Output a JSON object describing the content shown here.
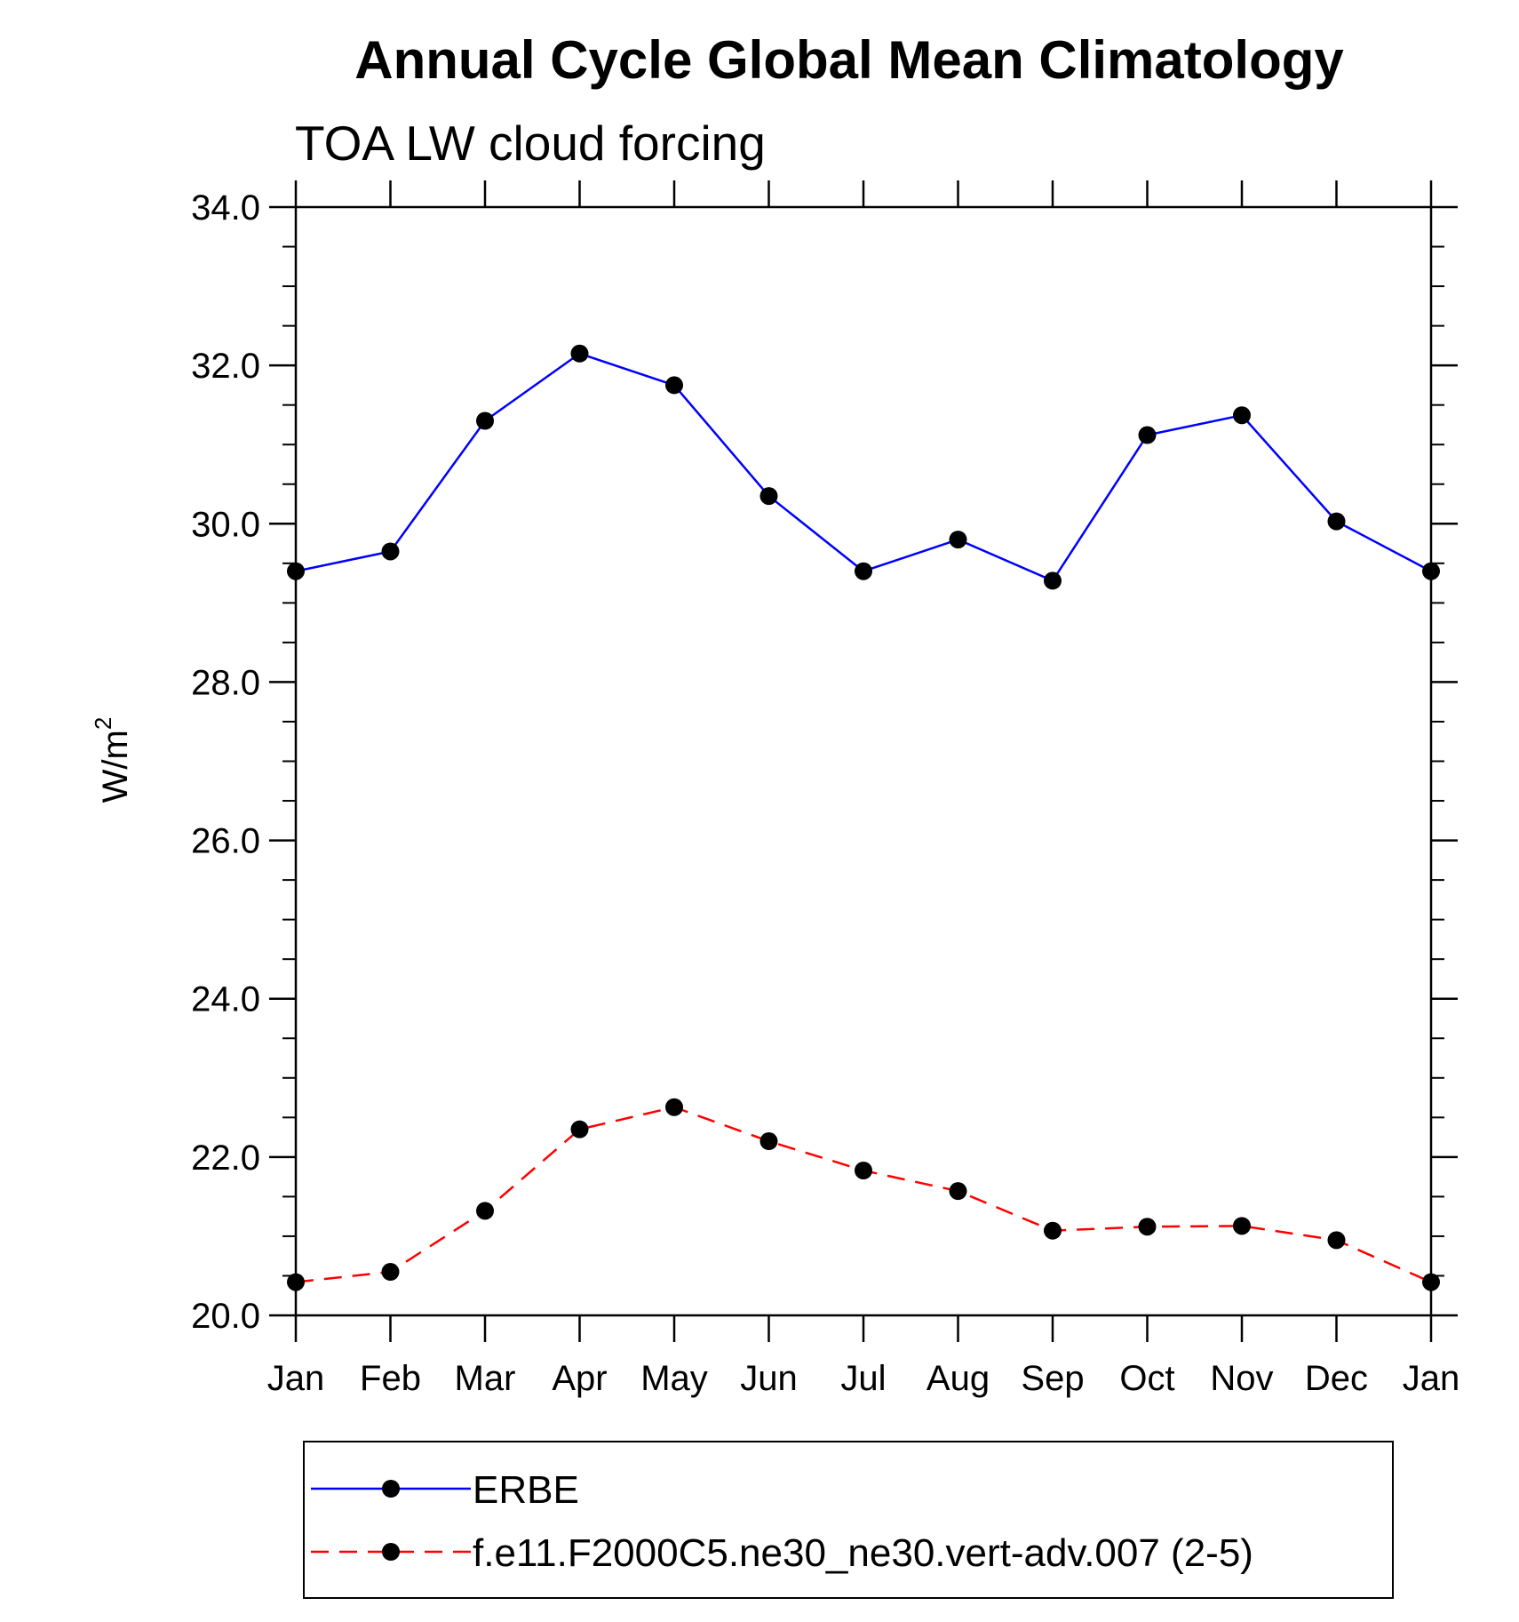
{
  "chart_data": {
    "type": "line",
    "title": "Annual Cycle Global Mean Climatology",
    "subtitle": "TOA LW cloud forcing",
    "ylabel": "W/m",
    "ylabel_superscript": "2",
    "xlabel": "",
    "ylim": [
      20.0,
      34.0
    ],
    "yticks": [
      "20.0",
      "22.0",
      "24.0",
      "26.0",
      "28.0",
      "30.0",
      "32.0",
      "34.0"
    ],
    "categories": [
      "Jan",
      "Feb",
      "Mar",
      "Apr",
      "May",
      "Jun",
      "Jul",
      "Aug",
      "Sep",
      "Oct",
      "Nov",
      "Dec",
      "Jan"
    ],
    "series": [
      {
        "name": "ERBE",
        "color": "#0000ff",
        "dash": "solid",
        "values": [
          29.4,
          29.65,
          31.3,
          32.15,
          31.75,
          30.35,
          29.4,
          29.8,
          29.28,
          31.12,
          31.37,
          30.03,
          29.4
        ]
      },
      {
        "name": "f.e11.F2000C5.ne30_ne30.vert-adv.007 (2-5)",
        "color": "#ff0000",
        "dash": "dashed",
        "values": [
          20.42,
          20.55,
          21.32,
          22.35,
          22.63,
          22.2,
          21.83,
          21.57,
          21.07,
          21.12,
          21.13,
          20.95,
          20.42
        ]
      }
    ],
    "grid": false,
    "legend_position": "bottom"
  }
}
